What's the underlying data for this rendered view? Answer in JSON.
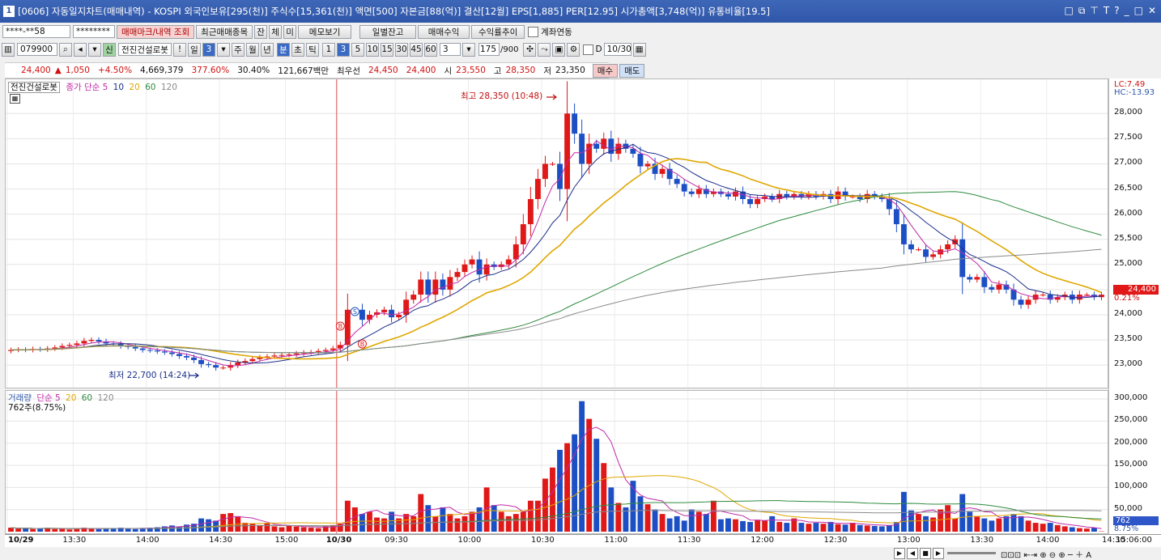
{
  "window": {
    "number": "1",
    "title": "[0606] 자동일지차트(매매내역) - KOSPI 외국인보유[295(천)] 주식수[15,361(천)] 액면[500] 자본금[88(억)] 결산[12월] EPS[1,885] PER[12.95] 시가총액[3,748(억)] 유통비율[19.5]",
    "icons": [
      "□",
      "⧉",
      "⊤",
      "T",
      "?",
      "_",
      "□",
      "✕"
    ]
  },
  "toolbar1": {
    "account_masked": "****-**58",
    "password_masked": "********",
    "buttons": [
      "매매마크/내역 조회",
      "최근매매종목",
      "잔",
      "체",
      "미",
      "메모보기",
      "일별잔고",
      "매매수익",
      "수익률추이"
    ],
    "link_checkbox_label": "계좌연동"
  },
  "toolbar2": {
    "code": "079900",
    "stock_name": "전진건설로봇",
    "period_buttons": [
      "일",
      "3",
      "주",
      "월",
      "년",
      "분",
      "초",
      "틱",
      "1",
      "3",
      "5",
      "10",
      "15",
      "30",
      "45",
      "60"
    ],
    "interval_value": "3",
    "count": "175",
    "count_total": "/900",
    "d_label": "D",
    "date": "10/30"
  },
  "quote": {
    "price": "24,400",
    "arrow": "▲",
    "change": "1,050",
    "change_pct": "+4.50%",
    "volume": "4,669,379",
    "vol_ratio": "377.60%",
    "turnover": "30.40%",
    "amount": "121,667백만",
    "best_label": "최우선",
    "ask": "24,450",
    "bid": "24,400",
    "open_label": "시",
    "open": "23,550",
    "high_label": "고",
    "high": "28,350",
    "low_label": "저",
    "low": "23,350",
    "buy_label": "매수",
    "sell_label": "매도"
  },
  "price_panel": {
    "name": "전진건설로봇",
    "legend_prefix": "종가 단순",
    "ma_labels": [
      "5",
      "10",
      "20",
      "60",
      "120"
    ],
    "ma_colors": [
      "#c02aa8",
      "#1c2f8a",
      "#e0a700",
      "#2e8b3e",
      "#8a8a8a"
    ],
    "lc": "LC:7.49",
    "hc": "HC:-13.93",
    "high_annot": "최고 28,350 (10:48)",
    "low_annot": "최저 22,700 (14:24)",
    "cur_price_label": "24,400",
    "cur_pct_label": "0.21%"
  },
  "volume_panel": {
    "legend_prefix": "거래량",
    "legend_ma": "단순",
    "ma_labels": [
      "5",
      "20",
      "60",
      "120"
    ],
    "sub": "762주(8.75%)",
    "cur_label": "762",
    "cur_pct": "8.75%"
  },
  "chart_data": {
    "type": "candlestick",
    "y_ticks": [
      "28,000",
      "27,500",
      "27,000",
      "26,500",
      "26,000",
      "25,500",
      "25,000",
      "24,500",
      "24,000",
      "23,500",
      "23,000"
    ],
    "vol_ticks": [
      "300,000",
      "250,000",
      "200,000",
      "150,000",
      "100,000",
      "50,000"
    ],
    "x_ticks": [
      "10/29",
      "13:30",
      "14:00",
      "14:30",
      "15:00",
      "10/30",
      "09:30",
      "10:00",
      "10:30",
      "11:00",
      "11:30",
      "12:00",
      "12:30",
      "13:00",
      "13:30",
      "14:00",
      "14:30"
    ],
    "time_right": "15:06:00",
    "ylim": [
      22600,
      28600
    ],
    "vol_max": 300000,
    "closes": [
      23300,
      23310,
      23300,
      23320,
      23310,
      23330,
      23350,
      23380,
      23400,
      23430,
      23480,
      23500,
      23470,
      23430,
      23420,
      23380,
      23360,
      23330,
      23300,
      23290,
      23270,
      23250,
      23220,
      23180,
      23150,
      23100,
      23020,
      23000,
      22950,
      22950,
      23000,
      23050,
      23080,
      23120,
      23150,
      23170,
      23190,
      23200,
      23210,
      23230,
      23250,
      23260,
      23280,
      23300,
      23330,
      23400,
      24100,
      24100,
      23900,
      24000,
      24050,
      24100,
      23950,
      24000,
      24300,
      24400,
      24700,
      24400,
      24700,
      24500,
      24750,
      24850,
      25000,
      25100,
      24800,
      25000,
      24950,
      25000,
      25100,
      25400,
      25800,
      26300,
      26700,
      27000,
      27000,
      26500,
      28000,
      27600,
      27000,
      27400,
      27300,
      27500,
      27200,
      27400,
      27300,
      27200,
      26950,
      27000,
      26800,
      26900,
      26700,
      26600,
      26450,
      26400,
      26500,
      26400,
      26450,
      26400,
      26350,
      26450,
      26300,
      26200,
      26300,
      26350,
      26300,
      26400,
      26350,
      26400,
      26350,
      26400,
      26350,
      26400,
      26300,
      26450,
      26350,
      26350,
      26300,
      26400,
      26350,
      26300,
      26100,
      25800,
      25400,
      25300,
      25300,
      25150,
      25200,
      25300,
      25400,
      25500,
      24750,
      24700,
      24750,
      24550,
      24500,
      24600,
      24500,
      24300,
      24200,
      24300,
      24400,
      24400,
      24300,
      24350,
      24400,
      24300,
      24400,
      24400,
      24350,
      24400
    ],
    "volumes": [
      9000,
      7000,
      8000,
      6000,
      7000,
      9000,
      6000,
      7000,
      5000,
      8000,
      9000,
      7000,
      6000,
      7000,
      8000,
      9000,
      7000,
      6000,
      8000,
      9000,
      10000,
      12000,
      14000,
      11000,
      16000,
      18000,
      30000,
      28000,
      25000,
      40000,
      42000,
      35000,
      20000,
      18000,
      15000,
      20000,
      12000,
      10000,
      14000,
      12000,
      10000,
      9000,
      8000,
      12000,
      15000,
      18000,
      70000,
      55000,
      40000,
      45000,
      32000,
      30000,
      45000,
      30000,
      40000,
      35000,
      85000,
      60000,
      35000,
      55000,
      40000,
      30000,
      35000,
      45000,
      55000,
      100000,
      60000,
      45000,
      35000,
      40000,
      45000,
      70000,
      70000,
      120000,
      145000,
      185000,
      200000,
      220000,
      295000,
      255000,
      210000,
      155000,
      100000,
      65000,
      55000,
      115000,
      80000,
      62000,
      50000,
      40000,
      30000,
      35000,
      25000,
      50000,
      45000,
      40000,
      70000,
      28000,
      30000,
      28000,
      24000,
      22000,
      27000,
      25000,
      35000,
      22000,
      20000,
      30000,
      20000,
      18000,
      20000,
      18000,
      22000,
      17000,
      16000,
      20000,
      15000,
      14000,
      13000,
      12000,
      15000,
      22000,
      90000,
      48000,
      40000,
      35000,
      32000,
      50000,
      60000,
      30000,
      85000,
      45000,
      35000,
      30000,
      25000,
      30000,
      35000,
      40000,
      35000,
      25000,
      20000,
      18000,
      20000,
      15000,
      12000,
      10000,
      8000,
      7000,
      9000,
      762
    ]
  },
  "statusbar": {
    "icons": [
      "▶",
      "◀",
      "■",
      "▶"
    ]
  }
}
